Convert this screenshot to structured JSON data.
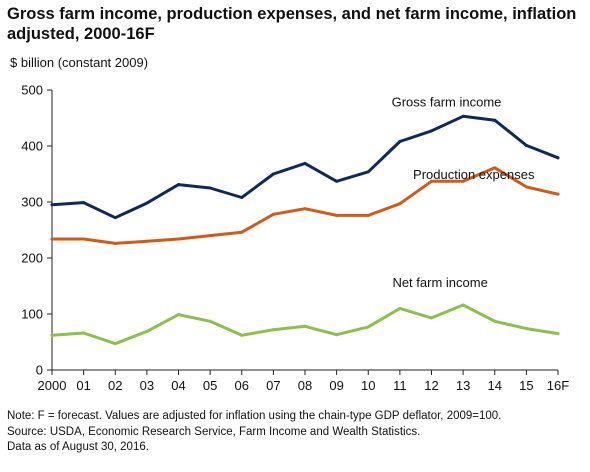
{
  "title": "Gross farm income, production expenses, and net farm income, inflation adjusted, 2000-16F",
  "unit_label": "$ billion (constant 2009)",
  "notes": [
    "Note: F = forecast. Values are adjusted for inflation using the chain-type GDP deflator, 2009=100.",
    "Source: USDA, Economic Research Service, Farm Income and Wealth Statistics.",
    "Data as of August 30, 2016."
  ],
  "chart_data": {
    "type": "line",
    "title": "Gross farm income, production expenses, and net farm income, inflation adjusted, 2000-16F",
    "ylabel": "$ billion (constant 2009)",
    "xlabel": "",
    "ylim": [
      0,
      500
    ],
    "yticks": [
      0,
      100,
      200,
      300,
      400,
      500
    ],
    "categories": [
      "2000",
      "01",
      "02",
      "03",
      "04",
      "05",
      "06",
      "07",
      "08",
      "09",
      "10",
      "11",
      "12",
      "13",
      "14",
      "15",
      "16F"
    ],
    "grid": false,
    "series": [
      {
        "name": "Gross farm income",
        "color": "#0e2a57",
        "values": [
          295,
          299,
          272,
          298,
          331,
          325,
          308,
          350,
          369,
          337,
          354,
          408,
          427,
          453,
          446,
          401,
          379
        ]
      },
      {
        "name": "Production expenses",
        "color": "#d15a1b",
        "values": [
          234,
          234,
          226,
          230,
          234,
          240,
          246,
          278,
          288,
          276,
          276,
          297,
          337,
          337,
          361,
          327,
          314
        ]
      },
      {
        "name": "Net farm income",
        "color": "#8cbf4e",
        "values": [
          62,
          66,
          47,
          69,
          99,
          87,
          62,
          72,
          78,
          63,
          77,
          110,
          93,
          116,
          87,
          74,
          65
        ]
      }
    ]
  }
}
